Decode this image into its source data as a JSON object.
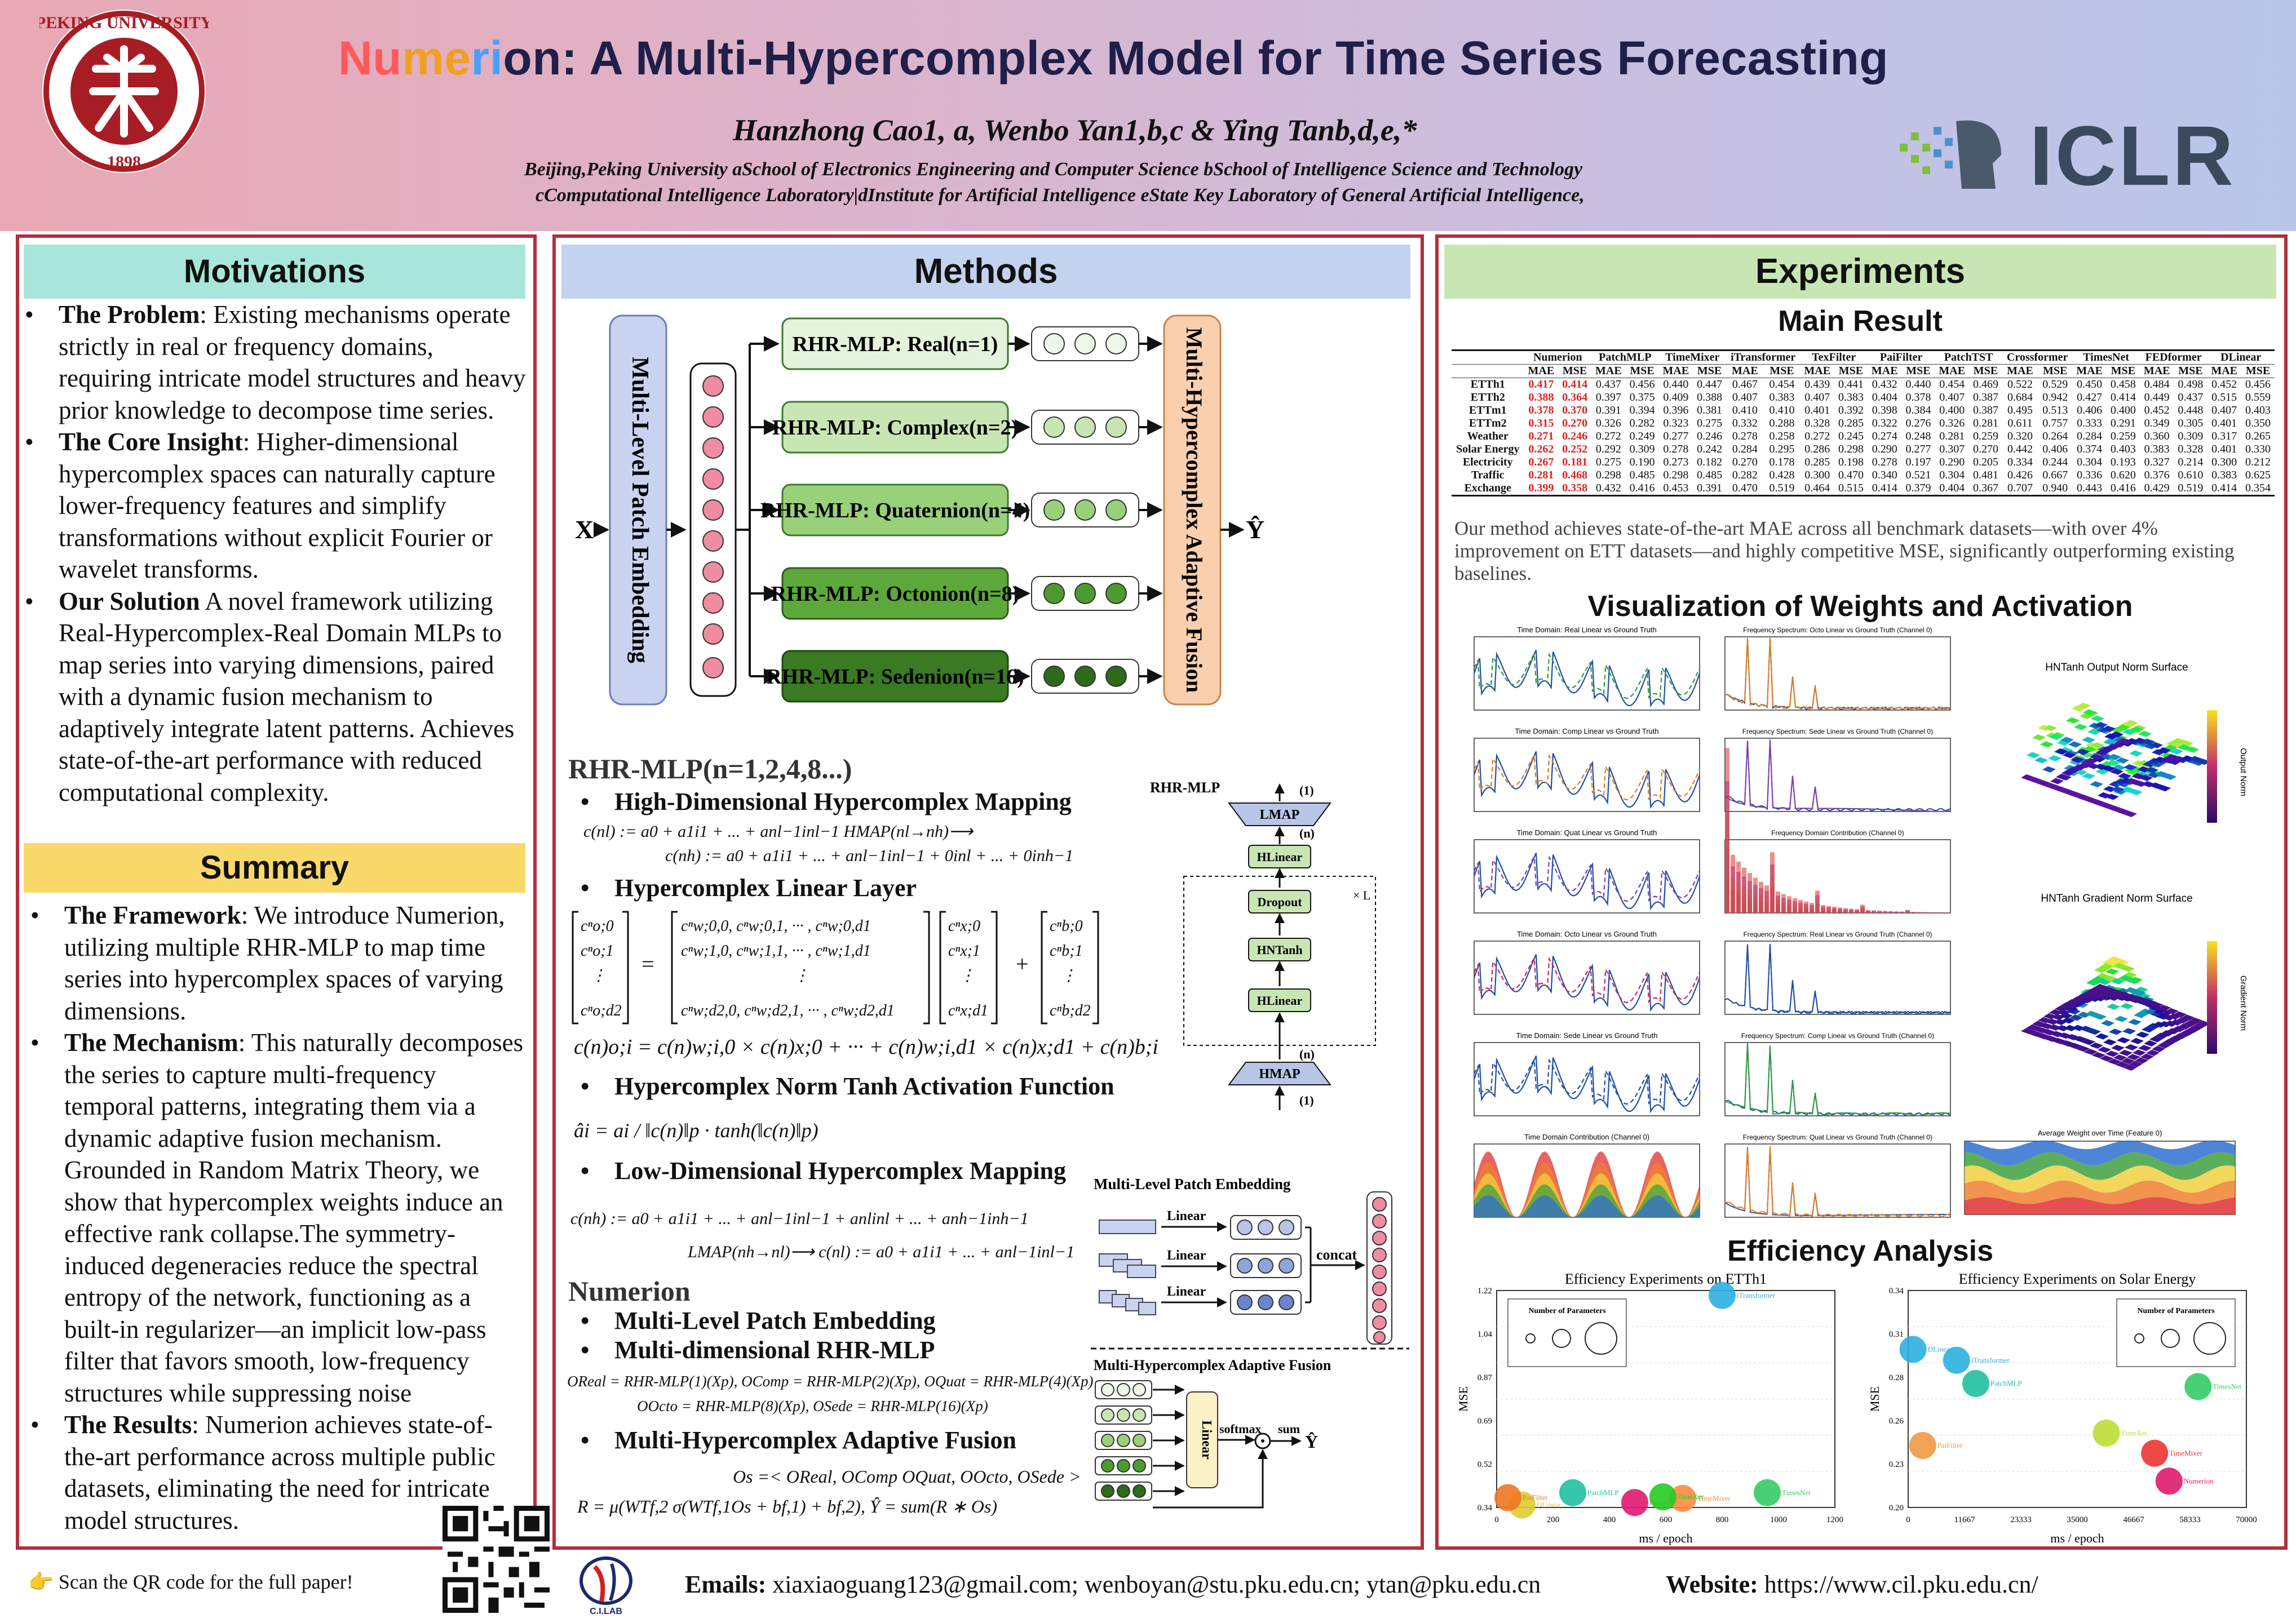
{
  "header": {
    "seal_text": "PEKING UNIVERSITY",
    "seal_year": "1898",
    "title_nu": "Nu",
    "title_me": "me",
    "title_ri": "ri",
    "title_rest": "on: A Multi-Hypercomplex Model for Time Series Forecasting",
    "authors": "Hanzhong Cao1, a, Wenbo Yan1,b,c & Ying Tanb,d,e,*",
    "affil_line1": "Beijing,Peking University aSchool of Electronics Engineering and Computer Science bSchool of Intelligence Science and Technology",
    "affil_line2": "cComputational Intelligence Laboratory|dInstitute for Artificial Intelligence eState Key Laboratory of General Artificial Intelligence,",
    "conference_logo": "ICLR"
  },
  "motivations": {
    "heading": "Motivations",
    "items": [
      {
        "lead": "The Problem",
        "text": ": Existing mechanisms operate strictly in real or frequency domains, requiring intricate model structures and heavy prior knowledge to decompose time series."
      },
      {
        "lead": "The Core Insight",
        "text": ": Higher-dimensional hypercomplex spaces can naturally capture lower-frequency features and simplify transformations without explicit Fourier or wavelet transforms."
      },
      {
        "lead": "Our Solution",
        "text": " A novel framework utilizing Real-Hypercomplex-Real Domain MLPs to map series into varying dimensions, paired with a dynamic fusion mechanism to adaptively integrate latent patterns. Achieves state-of-the-art performance with reduced computational complexity."
      }
    ]
  },
  "summary": {
    "heading": "Summary",
    "items": [
      {
        "lead": "The Framework",
        "text": ": We introduce Numerion, utilizing multiple RHR-MLP to map time series into hypercomplex spaces of varying dimensions."
      },
      {
        "lead": "The Mechanism",
        "text": ": This naturally decomposes the series to capture multi-frequency temporal patterns, integrating them via a dynamic adaptive fusion mechanism. Grounded in Random Matrix Theory, we show that hypercomplex weights induce an effective rank collapse.The symmetry-induced degeneracies reduce the spectral entropy of the network, functioning as a built-in regularizer—an implicit low-pass filter that favors smooth, low-frequency structures while suppressing noise"
      },
      {
        "lead": "The Results",
        "text": ": Numerion achieves state-of-the-art performance across multiple public datasets, eliminating the need for intricate model structures."
      }
    ]
  },
  "methods": {
    "heading": "Methods",
    "input": "X",
    "output": "Ŷ",
    "embedding_label": "Multi-Level Patch Embedding",
    "fusion_label": "Multi-Hypercomplex Adaptive Fusion",
    "branches": [
      "RHR-MLP: Real(n=1)",
      "RHR-MLP: Complex(n=2)",
      "RHR-MLP: Quaternion(n=4)",
      "RHR-MLP: Octonion(n=8)",
      "RHR-MLP: Sedenion(n=16)"
    ],
    "branch_colors": [
      "#e4f3dc",
      "#c8e6b4",
      "#99d07a",
      "#5da83a",
      "#3a7a22"
    ],
    "rhr_title": "RHR-MLP(n=1,2,4,8...)",
    "s1": "High-Dimensional Hypercomplex Mapping",
    "eq1a": "c(nl) := a0 + a1i1 + ... + anl−1inl−1   HMAP(nl→nh)⟶",
    "eq1b": "c(nh) := a0 + a1i1 + ... + anl−1inl−1 + 0inl + ... + 0inh−1",
    "s2": "Hypercomplex Linear Layer",
    "eq2": "c(n)o;i = c(n)w;i,0 × c(n)x;0 + ··· + c(n)w;i,d1 × c(n)x;d1 + c(n)b;i",
    "s3": "Hypercomplex Norm Tanh Activation Function",
    "eq3": "âi = ai / ‖c(n)‖p · tanh(‖c(n)‖p)",
    "s4": "Low-Dimensional Hypercomplex Mapping",
    "eq4a": "c(nh) := a0 + a1i1 + ... + anl−1inl−1 + anlinl + ... + anh−1inh−1",
    "eq4b": "LMAP(nh→nl)⟶  c(nl) := a0 + a1i1 + ... + anl−1inl−1",
    "arch_title": "RHR-MLP",
    "arch_blocks": [
      "LMAP",
      "HLinear",
      "Dropout",
      "HNTanh",
      "HLinear",
      "HMAP"
    ],
    "arch_tags": [
      "(1)",
      "(n)",
      "(n)",
      "(1)",
      "× L"
    ],
    "numerion_title": "Numerion",
    "n1": "Multi-Level Patch Embedding",
    "n2": "Multi-dimensional RHR-MLP",
    "eq5a": "OReal = RHR-MLP(1)(Xp), OComp = RHR-MLP(2)(Xp), OQuat = RHR-MLP(4)(Xp)",
    "eq5b": "OOcto = RHR-MLP(8)(Xp), OSede = RHR-MLP(16)(Xp)",
    "n3": "Multi-Hypercomplex Adaptive Fusion",
    "eq6a": "Os =< OReal, OComp OQuat, OOcto, OSede >",
    "eq6b": "R = μ(WTf,2 σ(WTf,1Os + bf,1) + bf,2), Ŷ = sum(R ∗ Os)",
    "mlpe_title": "Multi-Level Patch Embedding",
    "mlpe_labels": [
      "Linear",
      "Linear",
      "Linear",
      "concat"
    ],
    "mhaf_title": "Multi-Hypercomplex Adaptive Fusion",
    "mhaf_labels": [
      "Linear",
      "softmax",
      "sum",
      "Ŷ"
    ]
  },
  "experiments": {
    "heading": "Experiments",
    "main_result": "Main Result",
    "table": {
      "models": [
        "Numerion",
        "PatchMLP",
        "TimeMixer",
        "iTransformer",
        "TexFilter",
        "PaiFilter",
        "PatchTST",
        "Crossformer",
        "TimesNet",
        "FEDformer",
        "DLinear"
      ],
      "subheads": [
        "MAE",
        "MSE"
      ],
      "rows": [
        {
          "name": "ETTh1",
          "vals": [
            "0.417",
            "0.414",
            "0.437",
            "0.456",
            "0.440",
            "0.447",
            "0.467",
            "0.454",
            "0.439",
            "0.441",
            "0.432",
            "0.440",
            "0.454",
            "0.469",
            "0.522",
            "0.529",
            "0.450",
            "0.458",
            "0.484",
            "0.498",
            "0.452",
            "0.456"
          ]
        },
        {
          "name": "ETTh2",
          "vals": [
            "0.388",
            "0.364",
            "0.397",
            "0.375",
            "0.409",
            "0.388",
            "0.407",
            "0.383",
            "0.407",
            "0.383",
            "0.404",
            "0.378",
            "0.407",
            "0.387",
            "0.684",
            "0.942",
            "0.427",
            "0.414",
            "0.449",
            "0.437",
            "0.515",
            "0.559"
          ]
        },
        {
          "name": "ETTm1",
          "vals": [
            "0.378",
            "0.370",
            "0.391",
            "0.394",
            "0.396",
            "0.381",
            "0.410",
            "0.410",
            "0.401",
            "0.392",
            "0.398",
            "0.384",
            "0.400",
            "0.387",
            "0.495",
            "0.513",
            "0.406",
            "0.400",
            "0.452",
            "0.448",
            "0.407",
            "0.403"
          ]
        },
        {
          "name": "ETTm2",
          "vals": [
            "0.315",
            "0.270",
            "0.326",
            "0.282",
            "0.323",
            "0.275",
            "0.332",
            "0.288",
            "0.328",
            "0.285",
            "0.322",
            "0.276",
            "0.326",
            "0.281",
            "0.611",
            "0.757",
            "0.333",
            "0.291",
            "0.349",
            "0.305",
            "0.401",
            "0.350"
          ]
        },
        {
          "name": "Weather",
          "vals": [
            "0.271",
            "0.246",
            "0.272",
            "0.249",
            "0.277",
            "0.246",
            "0.278",
            "0.258",
            "0.272",
            "0.245",
            "0.274",
            "0.248",
            "0.281",
            "0.259",
            "0.320",
            "0.264",
            "0.284",
            "0.259",
            "0.360",
            "0.309",
            "0.317",
            "0.265"
          ]
        },
        {
          "name": "Solar Energy",
          "vals": [
            "0.262",
            "0.252",
            "0.292",
            "0.309",
            "0.278",
            "0.242",
            "0.284",
            "0.295",
            "0.286",
            "0.298",
            "0.290",
            "0.277",
            "0.307",
            "0.270",
            "0.442",
            "0.406",
            "0.374",
            "0.403",
            "0.383",
            "0.328",
            "0.401",
            "0.330"
          ]
        },
        {
          "name": "Electricity",
          "vals": [
            "0.267",
            "0.181",
            "0.275",
            "0.190",
            "0.273",
            "0.182",
            "0.270",
            "0.178",
            "0.285",
            "0.198",
            "0.278",
            "0.197",
            "0.290",
            "0.205",
            "0.334",
            "0.244",
            "0.304",
            "0.193",
            "0.327",
            "0.214",
            "0.300",
            "0.212"
          ]
        },
        {
          "name": "Traffic",
          "vals": [
            "0.281",
            "0.468",
            "0.298",
            "0.485",
            "0.298",
            "0.485",
            "0.282",
            "0.428",
            "0.300",
            "0.470",
            "0.340",
            "0.521",
            "0.304",
            "0.481",
            "0.426",
            "0.667",
            "0.336",
            "0.620",
            "0.376",
            "0.610",
            "0.383",
            "0.625"
          ]
        },
        {
          "name": "Exchange",
          "vals": [
            "0.399",
            "0.358",
            "0.432",
            "0.416",
            "0.453",
            "0.391",
            "0.470",
            "0.519",
            "0.464",
            "0.515",
            "0.414",
            "0.379",
            "0.404",
            "0.367",
            "0.707",
            "0.940",
            "0.443",
            "0.416",
            "0.429",
            "0.519",
            "0.414",
            "0.354"
          ]
        }
      ]
    },
    "result_text": "Our method achieves state-of-the-art MAE across all benchmark datasets—with over 4% improvement on ETT datasets—and highly competitive MSE, significantly outperforming existing baselines.",
    "vis_title": "Visualization of  Weights and Activation",
    "vis_left_titles": [
      "Time Domain: Real Linear vs Ground Truth",
      "Time Domain: Comp Linear vs Ground Truth",
      "Time Domain: Quat Linear vs Ground Truth",
      "Time Domain: Octo Linear vs Ground Truth",
      "Time Domain: Sede Linear vs Ground Truth",
      "Time Domain Contribution (Channel 0)"
    ],
    "vis_mid_titles": [
      "Frequency Spectrum: Octo Linear vs Ground Truth (Channel 0)",
      "Frequency Spectrum: Sede Linear vs Ground Truth (Channel 0)",
      "Frequency Domain Contribution (Channel 0)",
      "Frequency Spectrum: Real Linear vs Ground Truth (Channel 0)",
      "Frequency Spectrum: Comp Linear vs Ground Truth (Channel 0)",
      "Frequency Spectrum: Quat Linear vs Ground Truth (Channel 0)"
    ],
    "surf1_title": "HNTanh Output Norm Surface",
    "surf1_cbar": "Output Norm",
    "surf2_title": "HNTanh Gradient Norm Surface",
    "surf2_cbar": "Gradient Norm",
    "avg_title": "Average Weight over Time (Feature 0)",
    "eff_title": "Efficiency Analysis",
    "eff1_title": "Efficiency Experiments on ETTh1",
    "eff2_title": "Efficiency Experiments on Solar Energy",
    "eff_xlabel": "ms / epoch",
    "eff_ylabel": "MSE",
    "params_title": "Number of Parameters"
  },
  "chart_data": [
    {
      "type": "scatter",
      "title": "Efficiency Experiments on ETTh1",
      "xlabel": "ms / epoch",
      "ylabel": "MSE",
      "xlim": [
        0,
        1200
      ],
      "ylim": [
        0.34,
        1.22
      ],
      "points": [
        {
          "name": "Numerion",
          "x": 490,
          "y": 0.36,
          "color": "#e01a6f"
        },
        {
          "name": "TimeMixer",
          "x": 660,
          "y": 0.377,
          "color": "#ff8c40"
        },
        {
          "name": "TimeXer",
          "x": 590,
          "y": 0.383,
          "color": "#22cc22"
        },
        {
          "name": "PatchMLP",
          "x": 270,
          "y": 0.4,
          "color": "#20c0a0"
        },
        {
          "name": "TimesNet",
          "x": 960,
          "y": 0.4,
          "color": "#33cc66"
        },
        {
          "name": "iTransformer",
          "x": 800,
          "y": 1.2,
          "color": "#2bb0e0"
        },
        {
          "name": "DLinear",
          "x": 90,
          "y": 0.35,
          "color": "#ddcc33"
        },
        {
          "name": "PaiFilter",
          "x": 40,
          "y": 0.38,
          "color": "#ee7722"
        }
      ]
    },
    {
      "type": "scatter",
      "title": "Efficiency Experiments on Solar Energy",
      "xlabel": "ms / epoch",
      "ylabel": "MSE",
      "xlim": [
        0,
        70000
      ],
      "ylim": [
        0.2,
        0.34
      ],
      "points": [
        {
          "name": "Numerion",
          "x": 54000,
          "y": 0.217,
          "color": "#e01a6f"
        },
        {
          "name": "TimeMixer",
          "x": 51000,
          "y": 0.235,
          "color": "#ee3333"
        },
        {
          "name": "TimeXer",
          "x": 41000,
          "y": 0.248,
          "color": "#bbdd33"
        },
        {
          "name": "PatchMLP",
          "x": 14000,
          "y": 0.28,
          "color": "#20c0a0"
        },
        {
          "name": "TimesNet",
          "x": 60000,
          "y": 0.278,
          "color": "#33cc66"
        },
        {
          "name": "DLinear",
          "x": 1000,
          "y": 0.302,
          "color": "#2bb0e0"
        },
        {
          "name": "iTransformer",
          "x": 10000,
          "y": 0.295,
          "color": "#2bb0e0"
        },
        {
          "name": "PaiFilter",
          "x": 3000,
          "y": 0.24,
          "color": "#ee9944"
        }
      ]
    }
  ],
  "footer": {
    "qr_text": "👉 Scan the QR code for the full paper!",
    "lab_name": "C.I.LAB",
    "emails_label": "Emails:",
    "emails": " xiaxiaoguang123@gmail.com; wenboyan@stu.pku.edu.cn; ytan@pku.edu.cn",
    "website_label": "Website:",
    "website": " https://www.cil.pku.edu.cn/"
  }
}
